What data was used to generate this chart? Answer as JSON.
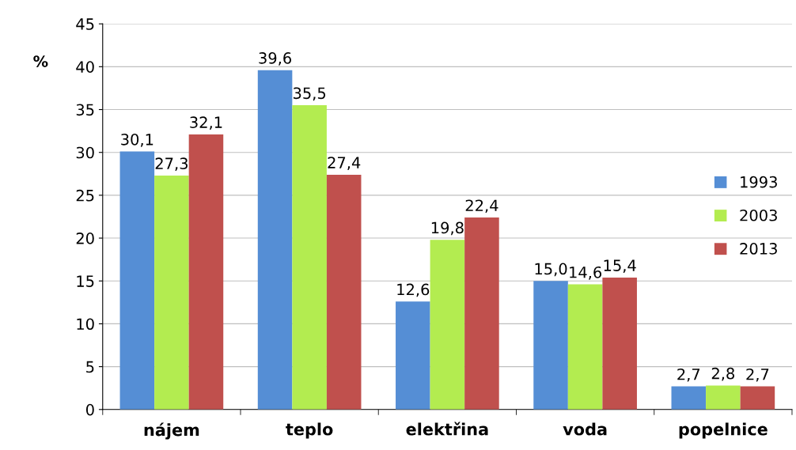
{
  "chart_data": {
    "type": "bar",
    "ylabel": "%",
    "categories": [
      "nájem",
      "teplo",
      "elektřina",
      "voda",
      "popelnice"
    ],
    "series": [
      {
        "name": "1993",
        "color": "#558ed5",
        "values": [
          30.1,
          39.6,
          12.6,
          15.0,
          2.7
        ],
        "value_labels": [
          "30,1",
          "39,6",
          "12,6",
          "15,0",
          "2,7"
        ]
      },
      {
        "name": "2003",
        "color": "#b3ec50",
        "values": [
          27.3,
          35.5,
          19.8,
          14.6,
          2.8
        ],
        "value_labels": [
          "27,3",
          "35,5",
          "19,8",
          "14,6",
          "2,8"
        ]
      },
      {
        "name": "2013",
        "color": "#c0504d",
        "values": [
          32.1,
          27.4,
          22.4,
          15.4,
          2.7
        ],
        "value_labels": [
          "32,1",
          "27,4",
          "22,4",
          "15,4",
          "2,7"
        ]
      }
    ],
    "ylim": [
      0,
      45
    ],
    "yticks": [
      0,
      5,
      10,
      15,
      20,
      25,
      30,
      35,
      40,
      45
    ],
    "grid": "y",
    "legend": "right"
  }
}
